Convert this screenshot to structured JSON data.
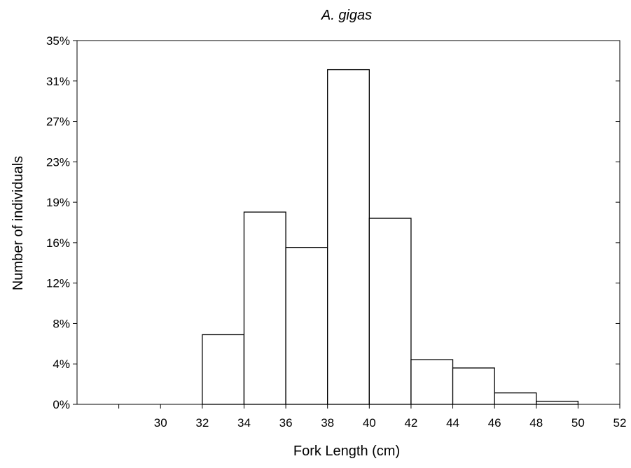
{
  "chart_data": {
    "type": "bar",
    "title": "A. gigas",
    "xlabel": "Fork Length (cm)",
    "ylabel": "Number of individuals",
    "xlim": [
      26,
      52
    ],
    "ylim": [
      0,
      35
    ],
    "x_ticks": [
      "30",
      "32",
      "34",
      "36",
      "38",
      "40",
      "42",
      "44",
      "46",
      "48",
      "50",
      "52"
    ],
    "y_ticks": [
      "0%",
      "4%",
      "8%",
      "12%",
      "16%",
      "19%",
      "23%",
      "27%",
      "31%",
      "35%"
    ],
    "bins": [
      {
        "start": 32,
        "end": 34,
        "value": 6.7
      },
      {
        "start": 34,
        "end": 36,
        "value": 18.5
      },
      {
        "start": 36,
        "end": 38,
        "value": 15.1
      },
      {
        "start": 38,
        "end": 40,
        "value": 32.2
      },
      {
        "start": 40,
        "end": 42,
        "value": 17.9
      },
      {
        "start": 42,
        "end": 44,
        "value": 4.3
      },
      {
        "start": 44,
        "end": 46,
        "value": 3.5
      },
      {
        "start": 46,
        "end": 48,
        "value": 1.1
      },
      {
        "start": 48,
        "end": 50,
        "value": 0.3
      }
    ],
    "bar_fill": "#ffffff",
    "bar_stroke": "#000000",
    "grid": false,
    "legend": "none"
  }
}
